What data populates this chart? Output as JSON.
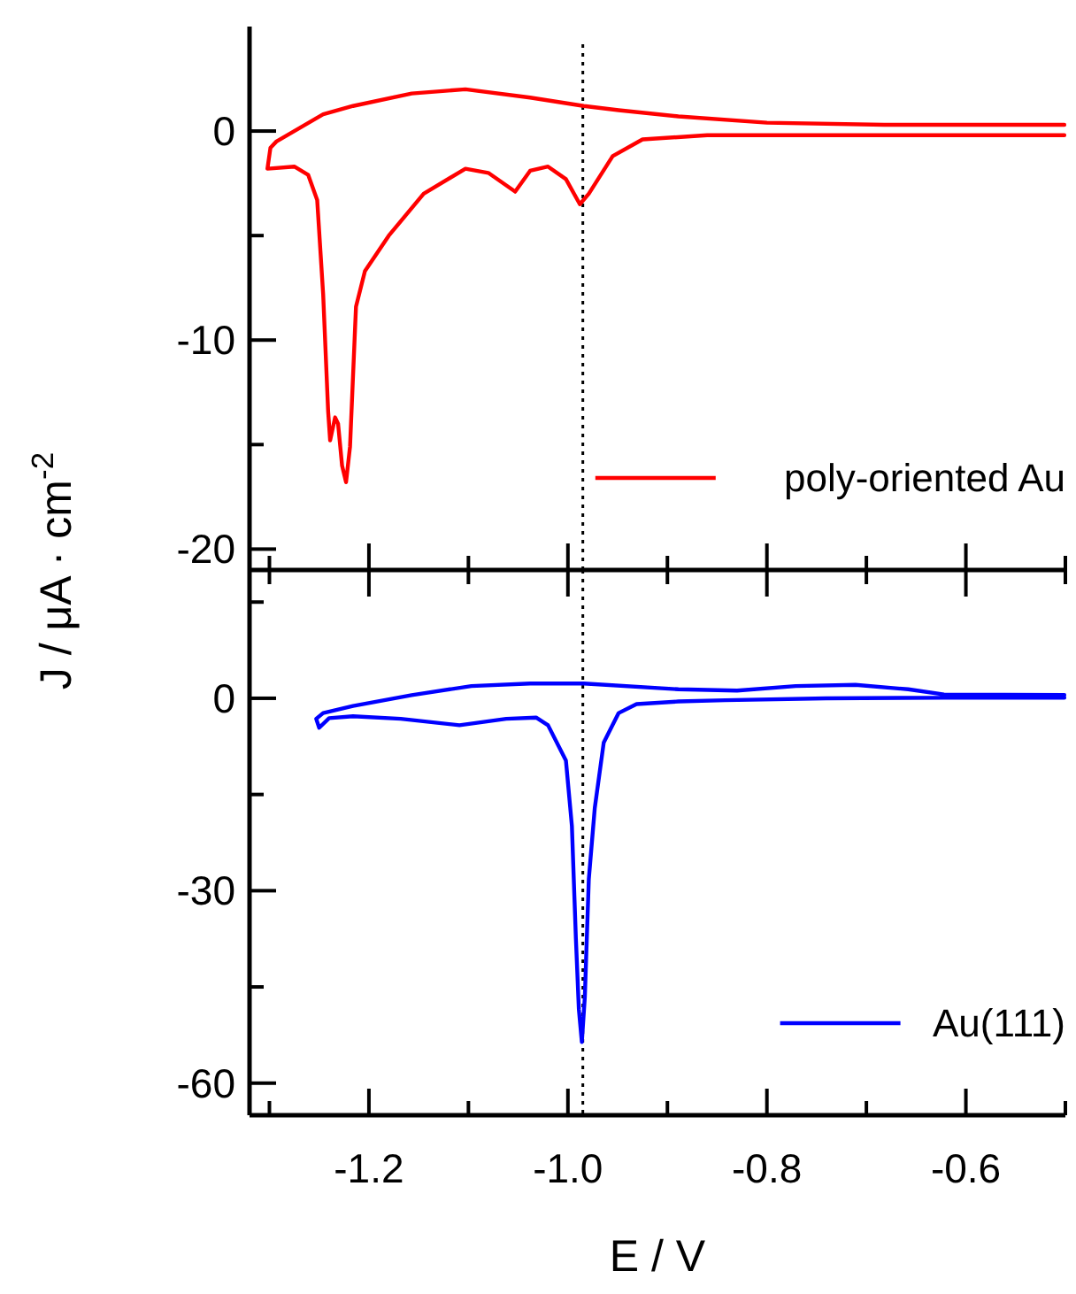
{
  "chart_data": [
    {
      "type": "line",
      "ylabel": "J / μA · cm$^{-2}$",
      "xlim": [
        -1.32,
        -0.5
      ],
      "ylim": [
        -21,
        5
      ],
      "xticks": [
        {
          "value": -1.3,
          "label": null
        },
        {
          "value": -1.2,
          "label": null
        },
        {
          "value": -1.1,
          "label": null
        },
        {
          "value": -1.0,
          "label": null
        },
        {
          "value": -0.9,
          "label": null
        },
        {
          "value": -0.8,
          "label": null
        },
        {
          "value": -0.7,
          "label": null
        },
        {
          "value": -0.6,
          "label": null
        },
        {
          "value": -0.5,
          "label": null
        }
      ],
      "yticks": [
        -20,
        {
          "value": -15,
          "label": null
        },
        -10,
        {
          "value": -5,
          "label": null
        },
        0
      ],
      "tick_labels": "y",
      "legend": "bottom right",
      "grid": false,
      "ref_lines": [
        {
          "axis": "x",
          "value": -0.985,
          "line_style": "dotted",
          "color": "#000000"
        }
      ],
      "series": [
        {
          "name": "poly-oriented Au",
          "color": "#ff0000",
          "x": [
            -0.501,
            -0.682,
            -0.8,
            -0.889,
            -0.949,
            -0.984,
            -1.038,
            -1.103,
            -1.157,
            -1.216,
            -1.246,
            -1.293,
            -1.299,
            -1.302,
            -1.275,
            -1.261,
            -1.252,
            -1.246,
            -1.241,
            -1.239,
            -1.234,
            -1.231,
            -1.227,
            -1.223,
            -1.219,
            -1.213,
            -1.204,
            -1.18,
            -1.145,
            -1.103,
            -1.08,
            -1.053,
            -1.038,
            -1.02,
            -1.002,
            -0.988,
            -0.979,
            -0.955,
            -0.925,
            -0.86,
            -0.682,
            -0.501
          ],
          "values": [
            0.3,
            0.3,
            0.4,
            0.7,
            1.0,
            1.2,
            1.6,
            2.0,
            1.8,
            1.2,
            0.8,
            -0.5,
            -0.8,
            -1.8,
            -1.7,
            -2.1,
            -3.3,
            -7.8,
            -13.4,
            -14.8,
            -13.7,
            -14.0,
            -16.0,
            -16.8,
            -15.1,
            -8.4,
            -6.7,
            -5.0,
            -3.0,
            -1.8,
            -2.0,
            -2.9,
            -1.9,
            -1.7,
            -2.3,
            -3.5,
            -3.0,
            -1.2,
            -0.4,
            -0.2,
            -0.2,
            -0.2
          ]
        }
      ]
    },
    {
      "type": "line",
      "xlabel": "E / V",
      "xlim": [
        -1.32,
        -0.5
      ],
      "ylim": [
        -65,
        20
      ],
      "xticks": [
        {
          "value": -1.3,
          "label": null
        },
        -1.2,
        {
          "value": -1.1,
          "label": null
        },
        {
          "value": -1.0,
          "label": "-1.0"
        },
        {
          "value": -0.9,
          "label": null
        },
        -0.8,
        {
          "value": -0.7,
          "label": null
        },
        -0.6,
        {
          "value": -0.5,
          "label": null
        }
      ],
      "yticks": [
        -60,
        {
          "value": -45,
          "label": null
        },
        -30,
        {
          "value": -15,
          "label": null
        },
        0,
        {
          "value": 15,
          "label": null
        }
      ],
      "legend": "bottom right",
      "grid": false,
      "ref_lines": [
        {
          "axis": "x",
          "value": -0.985,
          "line_style": "dotted",
          "color": "#000000"
        }
      ],
      "series": [
        {
          "name": "Au(111)",
          "color": "#0000ff",
          "x": [
            -0.501,
            -0.622,
            -0.658,
            -0.711,
            -0.771,
            -0.83,
            -0.889,
            -0.984,
            -1.038,
            -1.097,
            -1.157,
            -1.216,
            -1.246,
            -1.253,
            -1.25,
            -1.24,
            -1.216,
            -1.168,
            -1.109,
            -1.062,
            -1.032,
            -1.02,
            -1.002,
            -0.996,
            -0.992,
            -0.989,
            -0.986,
            -0.983,
            -0.979,
            -0.973,
            -0.964,
            -0.949,
            -0.931,
            -0.889,
            -0.842,
            -0.741,
            -0.622,
            -0.501
          ],
          "values": [
            0.5,
            0.6,
            1.4,
            2.1,
            1.9,
            1.2,
            1.4,
            2.3,
            2.3,
            1.9,
            0.5,
            -1.2,
            -2.3,
            -3.2,
            -4.6,
            -3.1,
            -2.8,
            -3.2,
            -4.2,
            -3.2,
            -3.0,
            -4.2,
            -9.7,
            -19.9,
            -37.4,
            -48.5,
            -53.6,
            -46.6,
            -28.2,
            -17.1,
            -6.9,
            -2.3,
            -0.9,
            -0.5,
            -0.3,
            0.0,
            0.1,
            0.1
          ]
        }
      ]
    }
  ]
}
